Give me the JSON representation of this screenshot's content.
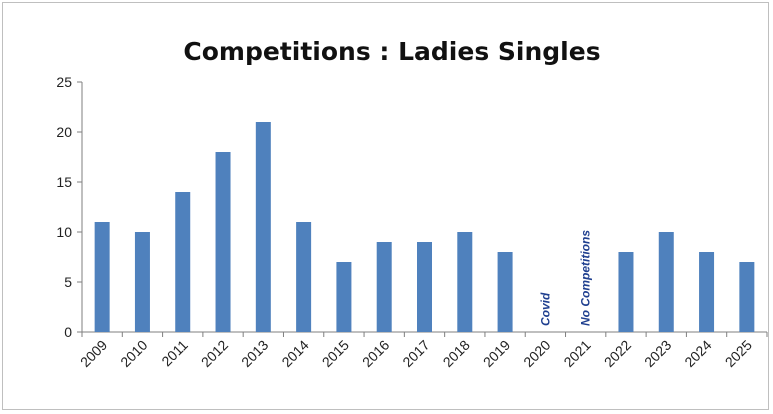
{
  "chart_data": {
    "type": "bar",
    "title": "Competitions : Ladies Singles",
    "xlabel": "",
    "ylabel": "",
    "categories": [
      "2009",
      "2010",
      "2011",
      "2012",
      "2013",
      "2014",
      "2015",
      "2016",
      "2017",
      "2018",
      "2019",
      "2020",
      "2021",
      "2022",
      "2023",
      "2024",
      "2025"
    ],
    "values": [
      11,
      10,
      14,
      18,
      21,
      11,
      7,
      9,
      9,
      10,
      8,
      null,
      null,
      8,
      10,
      8,
      7
    ],
    "ylim": [
      0,
      25
    ],
    "yticks": [
      "0",
      "5",
      "10",
      "15",
      "20",
      "25"
    ],
    "grid": false,
    "legend": "none",
    "bar_color": "#4f81bd",
    "annotations": [
      {
        "category": "2020",
        "text": "Covid",
        "color": "#1f3f8f"
      },
      {
        "category": "2021",
        "text": "No Competitions",
        "color": "#1f3f8f"
      }
    ]
  }
}
